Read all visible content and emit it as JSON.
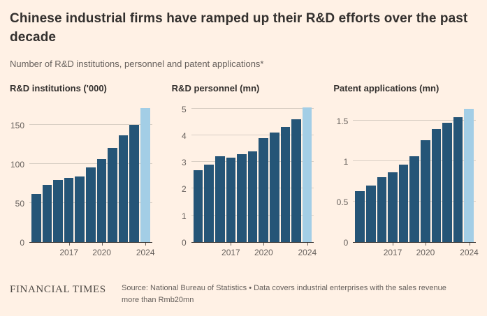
{
  "header": {
    "title": "Chinese industrial firms have ramped up their R&D efforts over the past decade",
    "subtitle": "Number of R&D institutions, personnel and patent applications*"
  },
  "footer": {
    "brand": "FINANCIAL TIMES",
    "source_line1": "Source: National Bureau of Statistics • Data covers industrial enterprises with the sales revenue",
    "source_line2": "more than Rmb20mn"
  },
  "colors": {
    "background": "#fff1e5",
    "bar": "#255577",
    "bar_highlight": "#a3cee6",
    "axis_text": "#66605c",
    "gridline": "#d9cfc4",
    "title_text": "#33302e"
  },
  "chart_data": [
    {
      "type": "bar",
      "title": "R&D institutions ('000)",
      "x": [
        2014,
        2015,
        2016,
        2017,
        2018,
        2019,
        2020,
        2021,
        2022,
        2023,
        2024
      ],
      "values": [
        62,
        73,
        80,
        82,
        84,
        96,
        106,
        121,
        137,
        150,
        172
      ],
      "ylim": [
        0,
        178
      ],
      "ytick_values": [
        0,
        50,
        100,
        150
      ],
      "ytick_labels": [
        "0",
        "50",
        "100",
        "150"
      ],
      "xticks": [
        2017,
        2020,
        2024
      ],
      "highlight_last": true,
      "legend": "none",
      "grid": true
    },
    {
      "type": "bar",
      "title": "R&D personnel (mn)",
      "x": [
        2014,
        2015,
        2016,
        2017,
        2018,
        2019,
        2020,
        2021,
        2022,
        2023,
        2024
      ],
      "values": [
        2.7,
        2.9,
        3.2,
        3.15,
        3.3,
        3.4,
        3.9,
        4.1,
        4.3,
        4.6,
        5.05
      ],
      "ylim": [
        0,
        5.2
      ],
      "ytick_values": [
        0,
        1,
        2,
        3,
        4,
        5
      ],
      "ytick_labels": [
        "0",
        "1",
        "2",
        "3",
        "4",
        "5"
      ],
      "xticks": [
        2017,
        2020,
        2024
      ],
      "highlight_last": true,
      "legend": "none",
      "grid": true
    },
    {
      "type": "bar",
      "title": "Patent applications (mn)",
      "x": [
        2014,
        2015,
        2016,
        2017,
        2018,
        2019,
        2020,
        2021,
        2022,
        2023,
        2024
      ],
      "values": [
        0.63,
        0.7,
        0.8,
        0.86,
        0.96,
        1.06,
        1.26,
        1.4,
        1.48,
        1.55,
        1.65
      ],
      "ylim": [
        0,
        1.72
      ],
      "ytick_values": [
        0,
        0.5,
        1,
        1.5
      ],
      "ytick_labels": [
        "0",
        "0.5",
        "1",
        "1.5"
      ],
      "xticks": [
        2017,
        2020,
        2024
      ],
      "highlight_last": true,
      "legend": "none",
      "grid": true
    }
  ]
}
